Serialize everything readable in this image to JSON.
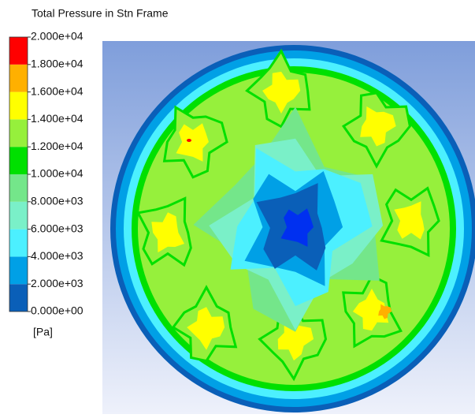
{
  "chart_data": {
    "type": "contour",
    "title": "Total Pressure in Stn Frame",
    "colorbar_label": "[Pa]",
    "zlim": [
      0,
      20000
    ],
    "zticks": [
      {
        "value": 0,
        "label": "0.000e+00"
      },
      {
        "value": 2000,
        "label": "2.000e+03"
      },
      {
        "value": 4000,
        "label": "4.000e+03"
      },
      {
        "value": 6000,
        "label": "6.000e+03"
      },
      {
        "value": 8000,
        "label": "8.000e+03"
      },
      {
        "value": 10000,
        "label": "1.000e+04"
      },
      {
        "value": 12000,
        "label": "1.200e+04"
      },
      {
        "value": 14000,
        "label": "1.400e+04"
      },
      {
        "value": 16000,
        "label": "1.600e+04"
      },
      {
        "value": 18000,
        "label": "1.800e+04"
      },
      {
        "value": 20000,
        "label": "2.000e+04"
      }
    ],
    "colors": [
      "#0a5fb8",
      "#00a0e6",
      "#4cf0ff",
      "#7af0c8",
      "#74e68a",
      "#00e000",
      "#96f03c",
      "#ffff00",
      "#ffb000",
      "#ff0000"
    ]
  }
}
